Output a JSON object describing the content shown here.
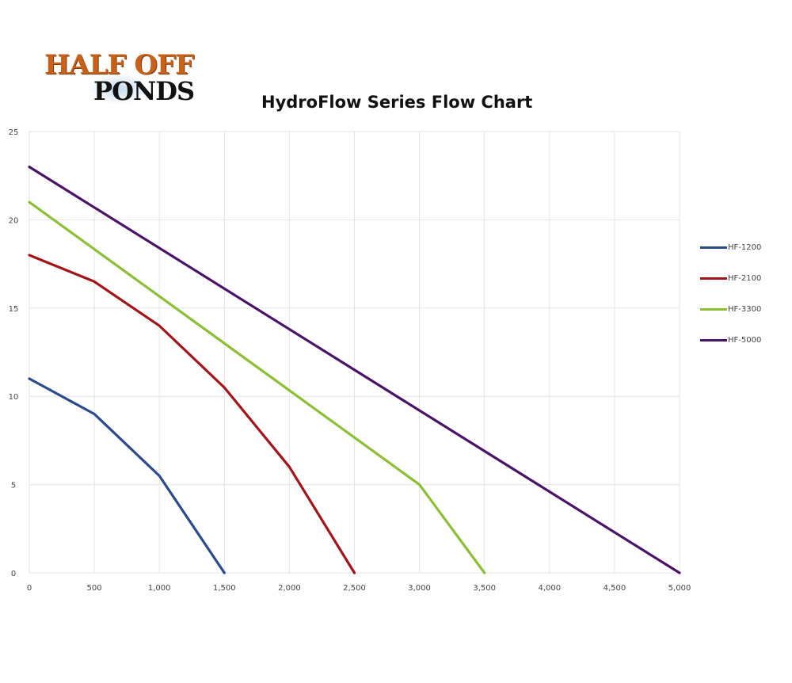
{
  "logo": {
    "line1": "HALF OFF",
    "line2": "PONDS"
  },
  "chart_data": {
    "type": "line",
    "title": "HydroFlow Series Flow Chart",
    "xlabel": "",
    "ylabel": "",
    "xlim": [
      0,
      5000
    ],
    "ylim": [
      0,
      25
    ],
    "grid": true,
    "legend_position": "right",
    "x_ticks": [
      "0",
      "500",
      "1,000",
      "1,500",
      "2,000",
      "2,500",
      "3,000",
      "3,500",
      "4,000",
      "4,500",
      "5,000"
    ],
    "y_ticks": [
      "0",
      "5",
      "10",
      "15",
      "20",
      "25"
    ],
    "series": [
      {
        "name": "HF-1200",
        "color": "#2b4a8a",
        "x": [
          0,
          500,
          1000,
          1500
        ],
        "values": [
          11,
          9,
          5.5,
          0
        ]
      },
      {
        "name": "HF-2100",
        "color": "#a0141a",
        "x": [
          0,
          500,
          1000,
          1500,
          2000,
          2500
        ],
        "values": [
          18,
          16.5,
          14,
          10.5,
          6,
          0
        ]
      },
      {
        "name": "HF-3300",
        "color": "#8cbf35",
        "x": [
          0,
          3000,
          3500
        ],
        "values": [
          21,
          5,
          0
        ]
      },
      {
        "name": "HF-5000",
        "color": "#4a1466",
        "x": [
          0,
          5000
        ],
        "values": [
          23,
          0
        ]
      }
    ]
  }
}
